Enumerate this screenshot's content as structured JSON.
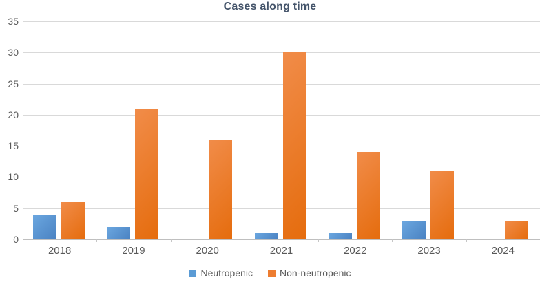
{
  "chart_data": {
    "type": "bar",
    "title": "Cases along time",
    "categories": [
      "2018",
      "2019",
      "2020",
      "2021",
      "2022",
      "2023",
      "2024"
    ],
    "series": [
      {
        "name": "Neutropenic",
        "color": "#5B9BD5",
        "gradient_top": "#6BA7E0",
        "gradient_bottom": "#4A82C2",
        "values": [
          4,
          2,
          0,
          1,
          1,
          3,
          0
        ]
      },
      {
        "name": "Non-neutropenic",
        "color": "#ED7D31",
        "gradient_top": "#F18C49",
        "gradient_bottom": "#E56C0D",
        "values": [
          6,
          21,
          16,
          30,
          14,
          11,
          3
        ]
      }
    ],
    "xlabel": "",
    "ylabel": "",
    "ylim": [
      0,
      35
    ],
    "yticks": [
      0,
      5,
      10,
      15,
      20,
      25,
      30,
      35
    ],
    "grid": true,
    "legend_position": "bottom"
  },
  "style": {
    "title_color": "#44546A",
    "axis_label_color": "#595959",
    "gridline_color": "#D9D9D9",
    "axis_line_color": "#BFBFBF",
    "tick_color": "#C6C6C6"
  }
}
